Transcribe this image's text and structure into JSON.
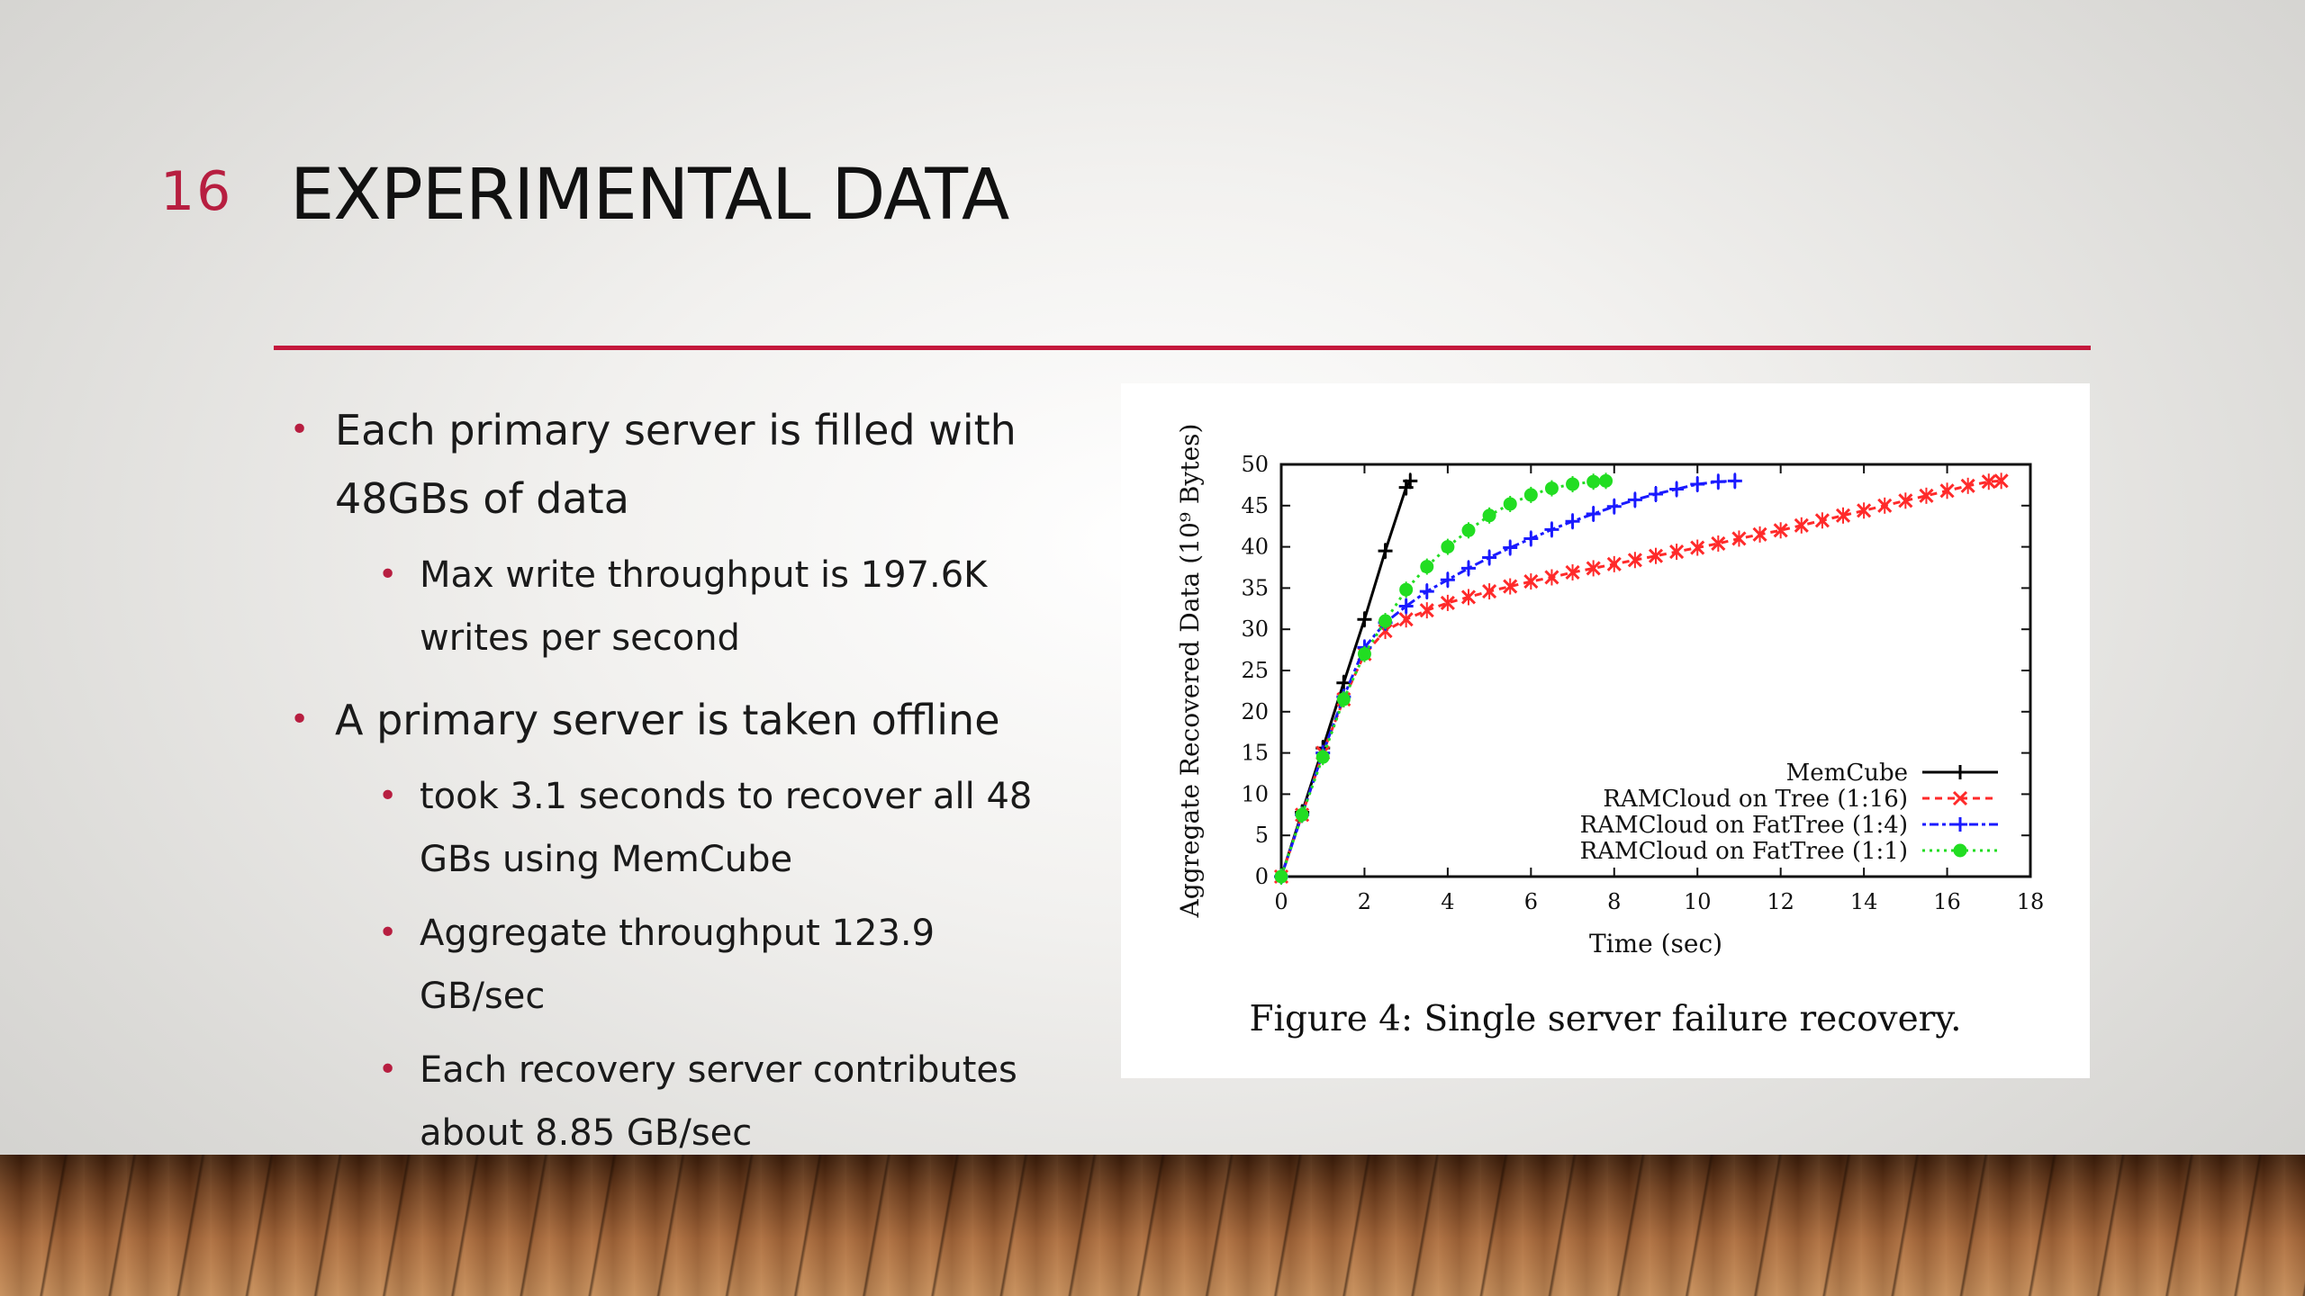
{
  "slide": {
    "number": "16",
    "title": "EXPERIMENTAL DATA"
  },
  "bullets": [
    {
      "text": "Each primary server is filled with 48GBs of data",
      "sub": [
        "Max write throughput is 197.6K writes per second"
      ]
    },
    {
      "text": "A primary server is taken offline",
      "sub": [
        "took 3.1 seconds to recover all 48 GBs using MemCube",
        "Aggregate throughput 123.9 GB/sec",
        "Each recovery server contributes about 8.85 GB/sec"
      ]
    }
  ],
  "figure": {
    "caption": "Figure 4: Single server failure recovery."
  },
  "colors": {
    "accent": "#c4183c",
    "memcube": "#000000",
    "tree": "#ff2a2a",
    "fattree14": "#1a1aff",
    "fattree11": "#22dd22"
  },
  "chart_data": {
    "type": "line",
    "title": "",
    "xlabel": "Time (sec)",
    "ylabel": "Aggregate Recovered Data (10⁹ Bytes)",
    "xlim": [
      0,
      18
    ],
    "ylim": [
      0,
      50
    ],
    "xticks": [
      0,
      2,
      4,
      6,
      8,
      10,
      12,
      14,
      16,
      18
    ],
    "yticks": [
      0,
      5,
      10,
      15,
      20,
      25,
      30,
      35,
      40,
      45,
      50
    ],
    "grid": false,
    "legend_position": "bottom-right",
    "series": [
      {
        "name": "MemCube",
        "color": "#000000",
        "marker": "+",
        "x": [
          0,
          0.5,
          1.0,
          1.5,
          2.0,
          2.5,
          3.0,
          3.1
        ],
        "y": [
          0,
          7.8,
          15.6,
          23.5,
          31.2,
          39.5,
          47.2,
          48
        ]
      },
      {
        "name": "RAMCloud on Tree (1:16)",
        "color": "#ff2a2a",
        "marker": "x",
        "x": [
          0,
          0.5,
          1.0,
          1.5,
          2.0,
          2.5,
          3,
          3.5,
          4,
          4.5,
          5,
          5.5,
          6,
          6.5,
          7,
          7.5,
          8,
          8.5,
          9,
          9.5,
          10,
          10.5,
          11,
          11.5,
          12,
          12.5,
          13,
          13.5,
          14,
          14.5,
          15,
          15.5,
          16,
          16.5,
          17,
          17.3
        ],
        "y": [
          0,
          7.5,
          15,
          21.5,
          27,
          29.8,
          31.2,
          32.3,
          33.2,
          33.9,
          34.6,
          35.2,
          35.8,
          36.3,
          36.9,
          37.4,
          37.9,
          38.4,
          38.9,
          39.4,
          39.9,
          40.4,
          41.0,
          41.5,
          42.0,
          42.6,
          43.2,
          43.8,
          44.4,
          45.0,
          45.6,
          46.2,
          46.8,
          47.4,
          47.9,
          48
        ]
      },
      {
        "name": "RAMCloud on FatTree (1:4)",
        "color": "#1a1aff",
        "marker": "+",
        "x": [
          0,
          0.5,
          1.0,
          1.5,
          2.0,
          2.5,
          3,
          3.5,
          4,
          4.5,
          5,
          5.5,
          6,
          6.5,
          7,
          7.5,
          8,
          8.5,
          9,
          9.5,
          10,
          10.5,
          10.9
        ],
        "y": [
          0,
          7.5,
          15,
          21.8,
          27.8,
          30.8,
          32.8,
          34.6,
          36.0,
          37.4,
          38.7,
          39.9,
          41.0,
          42.1,
          43.1,
          44.0,
          44.9,
          45.7,
          46.4,
          47.0,
          47.6,
          47.9,
          48
        ]
      },
      {
        "name": "RAMCloud on FatTree (1:1)",
        "color": "#22dd22",
        "marker": "o",
        "x": [
          0,
          0.5,
          1.0,
          1.5,
          2.0,
          2.5,
          3,
          3.5,
          4,
          4.5,
          5,
          5.5,
          6,
          6.5,
          7,
          7.5,
          7.8
        ],
        "y": [
          0,
          7.5,
          14.5,
          21.5,
          27.0,
          31.0,
          34.8,
          37.6,
          40.0,
          42.0,
          43.8,
          45.2,
          46.3,
          47.1,
          47.6,
          47.9,
          48
        ]
      }
    ]
  }
}
